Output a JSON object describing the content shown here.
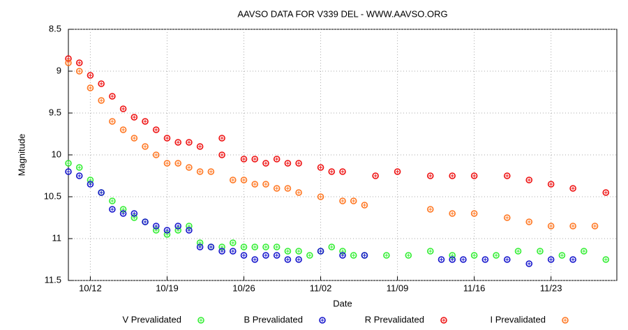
{
  "chart_data": {
    "type": "scatter",
    "title": "AAVSO DATA FOR V339 DEL - WWW.AAVSO.ORG",
    "x_label": "Date",
    "y_label": "Magnitude",
    "xlim": [
      "10/10",
      "11/29"
    ],
    "xticks": [
      "10/12",
      "10/19",
      "10/26",
      "11/02",
      "11/09",
      "11/16",
      "11/23"
    ],
    "ylim": [
      8.5,
      11.5
    ],
    "yticks": [
      8.5,
      9,
      9.5,
      10,
      10.5,
      11,
      11.5
    ],
    "y_inverted": true,
    "grid": true,
    "series": [
      {
        "name": "V Prevalidated",
        "color": "#33ee33",
        "x": [
          "10/10",
          "10/11",
          "10/12",
          "10/13",
          "10/14",
          "10/15",
          "10/16",
          "10/17",
          "10/18",
          "10/19",
          "10/20",
          "10/21",
          "10/22",
          "10/23",
          "10/24",
          "10/25",
          "10/26",
          "10/27",
          "10/28",
          "10/29",
          "10/30",
          "10/31",
          "11/01",
          "11/02",
          "11/03",
          "11/04",
          "11/05",
          "11/06",
          "11/08",
          "11/10",
          "11/12",
          "11/14",
          "11/16",
          "11/18",
          "11/20",
          "11/22",
          "11/24",
          "11/26",
          "11/28"
        ],
        "values": [
          10.1,
          10.15,
          10.3,
          10.45,
          10.55,
          10.65,
          10.75,
          10.8,
          10.9,
          10.95,
          10.9,
          10.85,
          11.05,
          11.1,
          11.1,
          11.05,
          11.1,
          11.1,
          11.1,
          11.1,
          11.15,
          11.15,
          11.2,
          11.15,
          11.1,
          11.15,
          11.2,
          11.2,
          11.2,
          11.2,
          11.15,
          11.2,
          11.2,
          11.2,
          11.15,
          11.15,
          11.2,
          11.15,
          11.25
        ]
      },
      {
        "name": "B Prevalidated",
        "color": "#1515cc",
        "x": [
          "10/10",
          "10/11",
          "10/12",
          "10/13",
          "10/14",
          "10/15",
          "10/16",
          "10/17",
          "10/18",
          "10/19",
          "10/20",
          "10/21",
          "10/22",
          "10/23",
          "10/24",
          "10/25",
          "10/26",
          "10/27",
          "10/28",
          "10/29",
          "10/30",
          "10/31",
          "11/02",
          "11/04",
          "11/06",
          "11/13",
          "11/14",
          "11/15",
          "11/17",
          "11/19",
          "11/21",
          "11/23",
          "11/25"
        ],
        "values": [
          10.2,
          10.25,
          10.35,
          10.45,
          10.65,
          10.7,
          10.7,
          10.8,
          10.85,
          10.9,
          10.85,
          10.9,
          11.1,
          11.1,
          11.15,
          11.15,
          11.2,
          11.25,
          11.2,
          11.2,
          11.25,
          11.25,
          11.15,
          11.2,
          11.2,
          11.25,
          11.25,
          11.25,
          11.25,
          11.25,
          11.3,
          11.25,
          11.25
        ]
      },
      {
        "name": "R Prevalidated",
        "color": "#ee1111",
        "x": [
          "10/10",
          "10/11",
          "10/12",
          "10/13",
          "10/14",
          "10/15",
          "10/16",
          "10/17",
          "10/18",
          "10/19",
          "10/20",
          "10/21",
          "10/22",
          "10/24",
          "10/24",
          "10/26",
          "10/27",
          "10/28",
          "10/29",
          "10/30",
          "10/31",
          "11/02",
          "11/03",
          "11/04",
          "11/07",
          "11/09",
          "11/12",
          "11/14",
          "11/16",
          "11/19",
          "11/21",
          "11/23",
          "11/25",
          "11/28"
        ],
        "values": [
          8.85,
          8.9,
          9.05,
          9.15,
          9.3,
          9.45,
          9.55,
          9.6,
          9.7,
          9.8,
          9.85,
          9.85,
          9.9,
          10.0,
          9.8,
          10.05,
          10.05,
          10.1,
          10.05,
          10.1,
          10.1,
          10.15,
          10.2,
          10.2,
          10.25,
          10.2,
          10.25,
          10.25,
          10.25,
          10.25,
          10.3,
          10.35,
          10.4,
          10.45
        ]
      },
      {
        "name": "I Prevalidated",
        "color": "#ff7722",
        "x": [
          "10/10",
          "10/11",
          "10/12",
          "10/13",
          "10/14",
          "10/15",
          "10/16",
          "10/17",
          "10/18",
          "10/19",
          "10/20",
          "10/21",
          "10/22",
          "10/23",
          "10/25",
          "10/26",
          "10/27",
          "10/28",
          "10/29",
          "10/30",
          "10/31",
          "11/02",
          "11/04",
          "11/05",
          "11/06",
          "11/12",
          "11/14",
          "11/16",
          "11/19",
          "11/21",
          "11/23",
          "11/25",
          "11/27"
        ],
        "values": [
          8.9,
          9.0,
          9.2,
          9.35,
          9.6,
          9.7,
          9.8,
          9.9,
          10.0,
          10.1,
          10.1,
          10.15,
          10.2,
          10.2,
          10.3,
          10.3,
          10.35,
          10.35,
          10.4,
          10.4,
          10.45,
          10.5,
          10.55,
          10.55,
          10.6,
          10.65,
          10.7,
          10.7,
          10.75,
          10.8,
          10.85,
          10.85,
          10.85
        ]
      }
    ]
  }
}
